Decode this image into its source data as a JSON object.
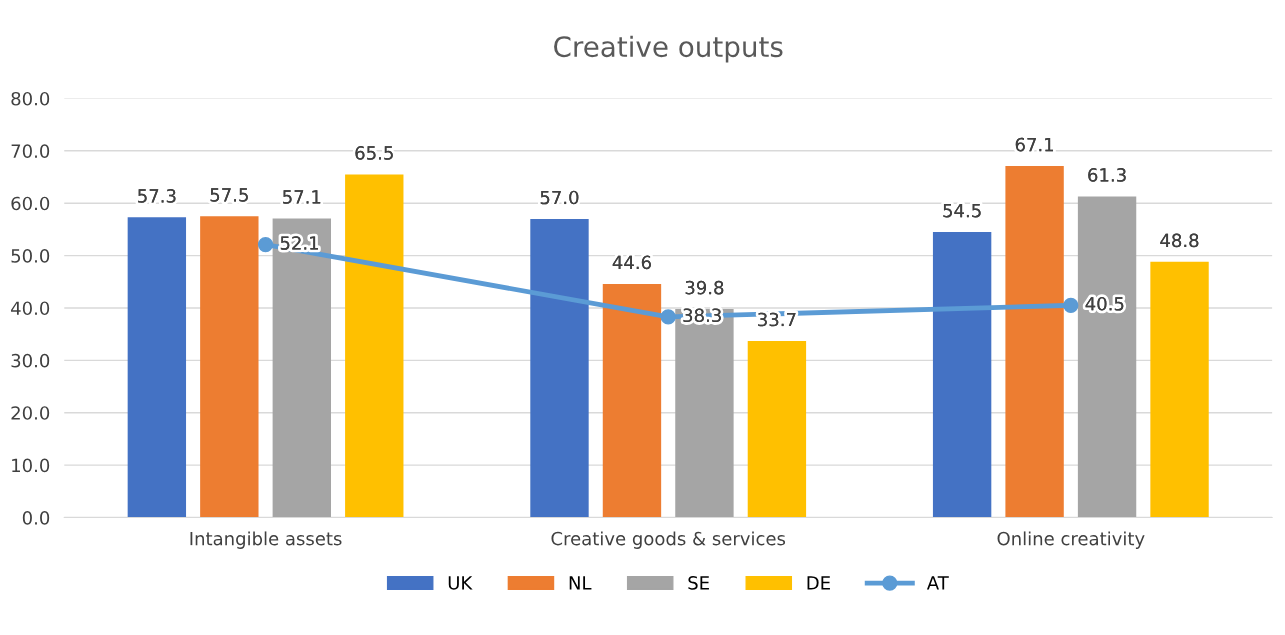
{
  "chart_data": {
    "type": "bar",
    "title": "Creative outputs",
    "categories": [
      "Intangible assets",
      "Creative goods & services",
      "Online creativity"
    ],
    "series": [
      {
        "name": "UK",
        "color": "#4472c4",
        "values": [
          57.3,
          57.0,
          54.5
        ],
        "value_labels": [
          "57.3",
          "57.0",
          "54.5"
        ]
      },
      {
        "name": "NL",
        "color": "#ed7d31",
        "values": [
          57.5,
          44.6,
          67.1
        ],
        "value_labels": [
          "57.5",
          "44.6",
          "67.1"
        ]
      },
      {
        "name": "SE",
        "color": "#a5a5a5",
        "values": [
          57.1,
          39.8,
          61.3
        ],
        "value_labels": [
          "57.1",
          "39.8",
          "61.3"
        ]
      },
      {
        "name": "DE",
        "color": "#ffc000",
        "values": [
          65.5,
          33.7,
          48.8
        ],
        "value_labels": [
          "65.5",
          "33.7",
          "48.8"
        ]
      },
      {
        "name": "AT",
        "color": "#5b9bd5",
        "type": "line",
        "marker": "circle",
        "values": [
          52.1,
          38.3,
          40.5
        ],
        "value_labels": [
          "52.1",
          "38.3",
          "40.5"
        ]
      }
    ],
    "ylim": [
      0,
      80
    ],
    "yticks": [
      {
        "value": 0,
        "label": "0.0"
      },
      {
        "value": 10,
        "label": "10.0"
      },
      {
        "value": 20,
        "label": "20.0"
      },
      {
        "value": 30,
        "label": "30.0"
      },
      {
        "value": 40,
        "label": "40.0"
      },
      {
        "value": 50,
        "label": "50.0"
      },
      {
        "value": 60,
        "label": "60.0"
      },
      {
        "value": 70,
        "label": "70.0"
      },
      {
        "value": 80,
        "label": "80.0"
      }
    ],
    "grid": "y",
    "legend": "bottom"
  }
}
